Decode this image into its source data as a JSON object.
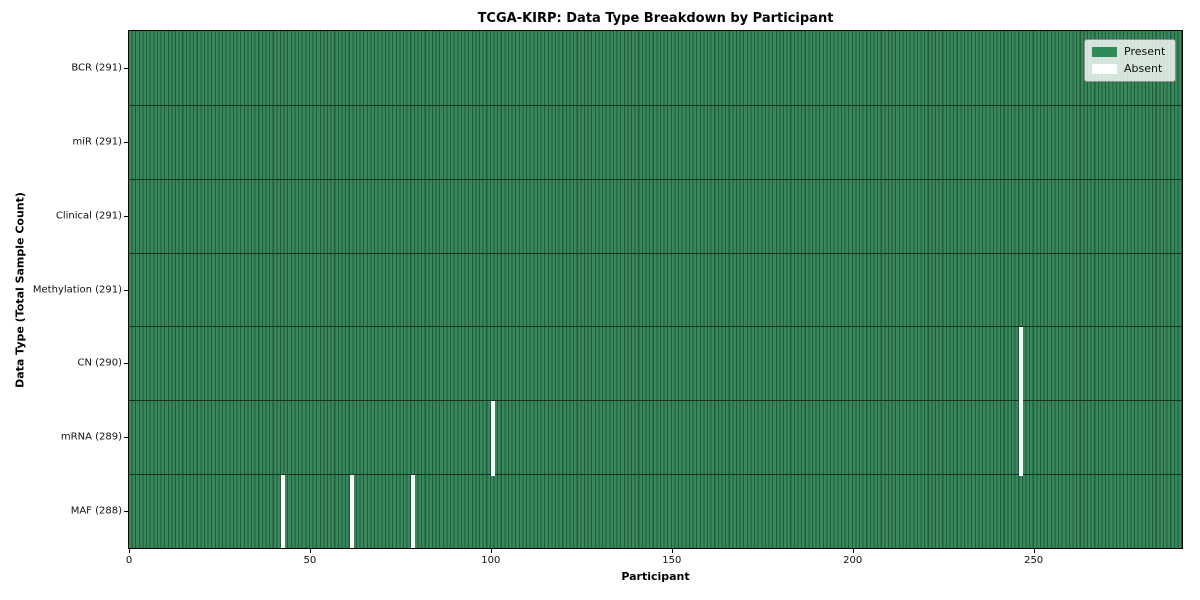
{
  "chart_data": {
    "type": "heatmap",
    "title": "TCGA-KIRP: Data Type Breakdown by Participant",
    "xlabel": "Participant",
    "ylabel": "Data Type (Total Sample Count)",
    "x_ticks": [
      0,
      50,
      100,
      150,
      200,
      250
    ],
    "x_range": [
      0,
      291
    ],
    "participants_total": 291,
    "rows": [
      {
        "label": "BCR (291)",
        "data_type": "BCR",
        "sample_count": 291,
        "absent_participants": []
      },
      {
        "label": "miR (291)",
        "data_type": "miR",
        "sample_count": 291,
        "absent_participants": []
      },
      {
        "label": "Clinical (291)",
        "data_type": "Clinical",
        "sample_count": 291,
        "absent_participants": []
      },
      {
        "label": "Methylation (291)",
        "data_type": "Methylation",
        "sample_count": 291,
        "absent_participants": []
      },
      {
        "label": "CN (290)",
        "data_type": "CN",
        "sample_count": 290,
        "absent_participants": [
          246
        ]
      },
      {
        "label": "mRNA (289)",
        "data_type": "mRNA",
        "sample_count": 289,
        "absent_participants": [
          100,
          246
        ]
      },
      {
        "label": "MAF (288)",
        "data_type": "MAF",
        "sample_count": 288,
        "absent_participants": [
          42,
          61,
          78
        ]
      }
    ],
    "legend": {
      "position": "upper right",
      "items": [
        {
          "label": "Present",
          "color": "#2e8b57"
        },
        {
          "label": "Absent",
          "color": "#ffffff"
        }
      ]
    },
    "colors": {
      "present_fill": "#36895b",
      "cell_edge": "#27583a",
      "row_divider": "#16341f",
      "absent_fill": "#ffffff",
      "plot_border": "#000000",
      "background": "#ffffff"
    },
    "grid": false
  }
}
